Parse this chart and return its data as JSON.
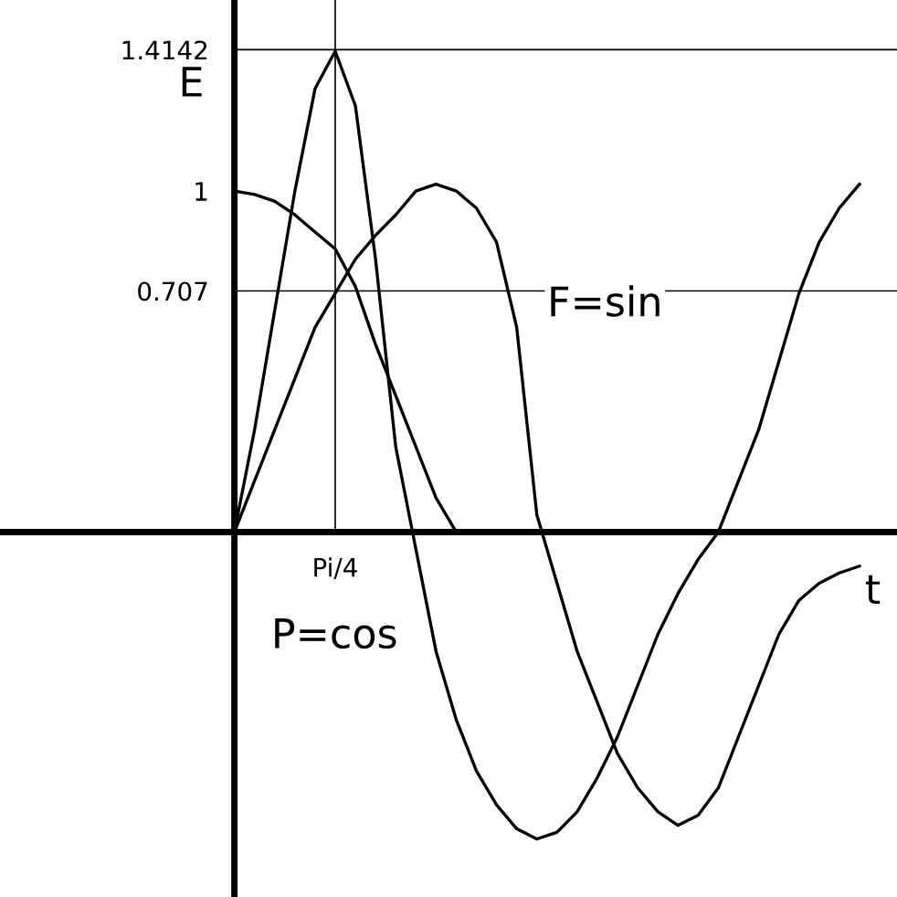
{
  "chart_data": {
    "type": "line",
    "xlabel": "t",
    "ylabel": "E",
    "categories": [
      null,
      null,
      null,
      null,
      null,
      "Pi/4",
      null,
      null,
      null,
      null,
      null,
      null,
      null,
      null,
      null,
      null,
      null,
      null,
      null,
      null,
      null,
      null,
      null,
      null,
      null,
      null,
      null,
      null,
      null,
      null,
      null,
      null
    ],
    "series": [
      {
        "color": "#000000",
        "values": [
          0,
          0.3,
          0.65,
          1.0,
          1.3,
          1.41,
          1.25,
          0.8,
          0.25,
          -0.05,
          -0.35,
          -0.55,
          -0.7,
          -0.8,
          -0.87,
          -0.9,
          -0.88,
          -0.82,
          -0.72,
          -0.6,
          -0.45,
          -0.3,
          -0.18,
          -0.08,
          0,
          0.15,
          0.3,
          0.5,
          0.7,
          0.85,
          0.95,
          1.02
        ]
      },
      {
        "color": "#000000",
        "values": [
          0,
          0.15,
          0.3,
          0.45,
          0.6,
          0.7,
          0.8,
          0.87,
          0.93,
          1.0,
          1.02,
          1.0,
          0.95,
          0.85,
          0.6,
          0.05,
          -0.15,
          -0.35,
          -0.5,
          -0.65,
          -0.75,
          -0.82,
          -0.86,
          -0.83,
          -0.75,
          -0.6,
          -0.45,
          -0.3,
          -0.2,
          -0.15,
          -0.12,
          -0.1
        ]
      },
      {
        "color": "#000000",
        "values": [
          1,
          0.99,
          0.97,
          0.93,
          0.88,
          0.83,
          0.72,
          0.55,
          0.4,
          0.25,
          0.1,
          0,
          null,
          null,
          null,
          null,
          null,
          null,
          null,
          null,
          null,
          null,
          null,
          null,
          null,
          null,
          null,
          null,
          null,
          null,
          null,
          null
        ]
      }
    ],
    "ylim": [
      -1.07,
      1.56
    ],
    "yticks": [
      0.707,
      1,
      1.4142
    ],
    "ref_lines": [
      {
        "axis": "y",
        "value": 1.4142,
        "color": "#000000"
      },
      {
        "axis": "y",
        "value": 0.707,
        "color": "#000000"
      },
      {
        "axis": "x",
        "value": "Pi/4",
        "color": "#000000"
      }
    ],
    "annotations": [
      "F=sin",
      "P=cos"
    ],
    "grid": false,
    "legend": false,
    "marker": "none",
    "line_style": "solid"
  }
}
